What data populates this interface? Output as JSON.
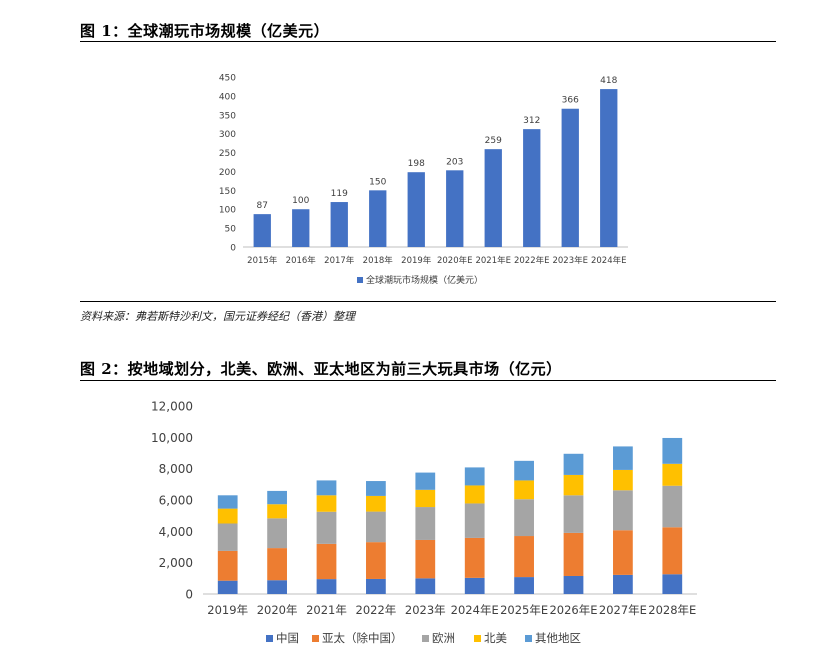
{
  "figure1": {
    "title": "图 1：全球潮玩市场规模（亿美元）",
    "source": "资料来源：弗若斯特沙利文，国元证券经纪（香港）整理"
  },
  "figure2": {
    "title": "图 2：按地域划分，北美、欧洲、亚太地区为前三大玩具市场（亿元）"
  },
  "chart_data": [
    {
      "type": "bar",
      "title": "全球潮玩市场规模（亿美元）",
      "categories": [
        "2015年",
        "2016年",
        "2017年",
        "2018年",
        "2019年",
        "2020年E",
        "2021年E",
        "2022年E",
        "2023年E",
        "2024年E"
      ],
      "series": [
        {
          "name": "全球潮玩市场规模（亿美元）",
          "color": "#4472C4",
          "values": [
            87,
            100,
            119,
            150,
            198,
            203,
            259,
            312,
            366,
            418
          ]
        }
      ],
      "ylim": [
        0,
        450
      ],
      "yticks": [
        0,
        50,
        100,
        150,
        200,
        250,
        300,
        350,
        400,
        450
      ],
      "ytick_labels": [
        "0",
        "50",
        "100",
        "150",
        "200",
        "250",
        "300",
        "350",
        "400",
        "450"
      ],
      "data_labels": true,
      "legend": "bottom"
    },
    {
      "type": "bar",
      "stacked": true,
      "title": "按地域划分，北美、欧洲、亚太地区为前三大玩具市场（亿元）",
      "categories": [
        "2019年",
        "2020年",
        "2021年",
        "2022年",
        "2023年",
        "2024年E",
        "2025年E",
        "2026年E",
        "2027年E",
        "2028年E"
      ],
      "series": [
        {
          "name": "中国",
          "color": "#4472C4",
          "values": [
            850,
            880,
            950,
            960,
            1000,
            1030,
            1080,
            1150,
            1220,
            1260
          ]
        },
        {
          "name": "亚太（除中国）",
          "color": "#ED7D31",
          "values": [
            1900,
            2050,
            2250,
            2350,
            2450,
            2550,
            2620,
            2750,
            2850,
            3000
          ]
        },
        {
          "name": "欧洲",
          "color": "#A5A5A5",
          "values": [
            1750,
            1900,
            2050,
            1950,
            2100,
            2200,
            2350,
            2400,
            2550,
            2650
          ]
        },
        {
          "name": "北美",
          "color": "#FFC000",
          "values": [
            950,
            900,
            1050,
            1000,
            1100,
            1150,
            1200,
            1300,
            1300,
            1400
          ]
        },
        {
          "name": "其他地区",
          "color": "#5B9BD5",
          "values": [
            850,
            850,
            950,
            950,
            1100,
            1150,
            1250,
            1350,
            1500,
            1650
          ]
        }
      ],
      "ylim": [
        0,
        12000
      ],
      "yticks": [
        0,
        2000,
        4000,
        6000,
        8000,
        10000,
        12000
      ],
      "ytick_labels": [
        "0",
        "2,000",
        "4,000",
        "6,000",
        "8,000",
        "10,000",
        "12,000"
      ],
      "legend": "bottom"
    }
  ]
}
